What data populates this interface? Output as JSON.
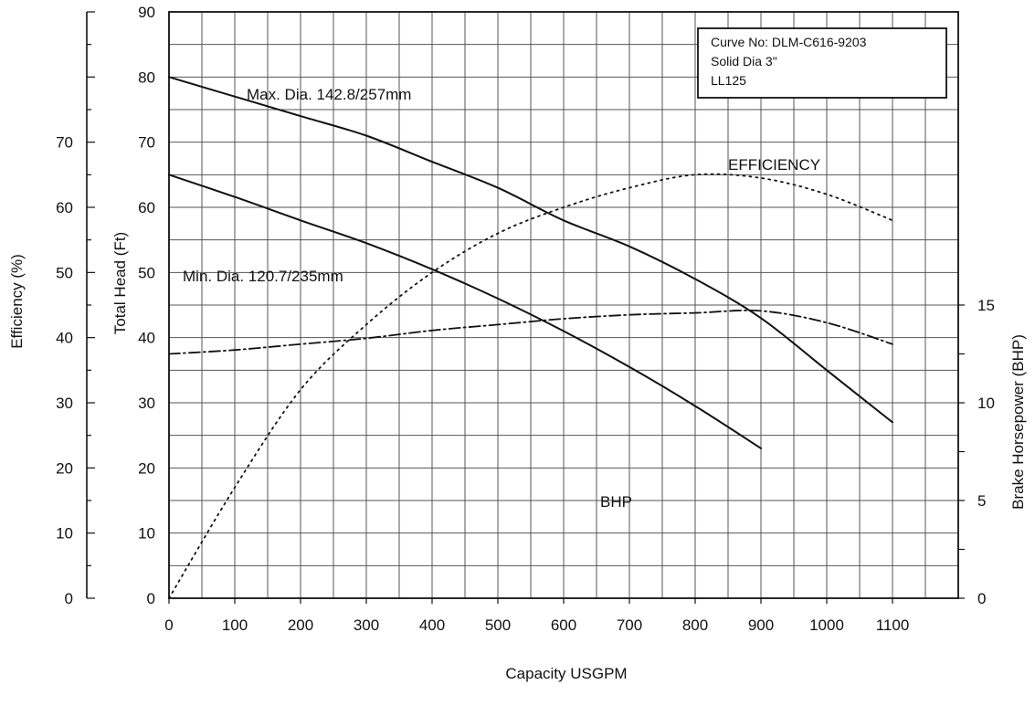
{
  "chart_data": {
    "type": "line",
    "xlabel": "Capacity USGPM",
    "ylabel_head": "Total Head (Ft)",
    "ylabel_efficiency": "Efficiency (%)",
    "ylabel_bhp": "Brake Horsepower (BHP)",
    "x_ticks": [
      0,
      100,
      200,
      300,
      400,
      500,
      600,
      700,
      800,
      900,
      1000,
      1100
    ],
    "head_ticks": [
      0,
      10,
      20,
      30,
      40,
      50,
      60,
      70,
      80,
      90
    ],
    "efficiency_ticks": [
      0,
      10,
      20,
      30,
      40,
      50,
      60,
      70
    ],
    "bhp_ticks": [
      0,
      5,
      10,
      15
    ],
    "xlim": [
      0,
      1200
    ],
    "ylim_head": [
      0,
      90
    ],
    "ylim_efficiency": [
      0,
      90
    ],
    "ylim_bhp": [
      0,
      30
    ],
    "grid": true,
    "info_box": {
      "line1": "Curve No: DLM-C616-9203",
      "line2": "Solid Dia 3\"",
      "line3": "LL125"
    },
    "series": [
      {
        "name": "Max. Dia. 142.8/257mm",
        "axis": "head",
        "style": "solid",
        "x": [
          0,
          100,
          200,
          300,
          400,
          500,
          600,
          700,
          800,
          900,
          1000,
          1100
        ],
        "y": [
          80,
          77,
          74,
          71,
          67,
          63,
          58,
          54,
          49,
          43,
          35,
          27
        ]
      },
      {
        "name": "Min. Dia. 120.7/235mm",
        "axis": "head",
        "style": "solid",
        "x": [
          0,
          100,
          200,
          300,
          400,
          500,
          600,
          700,
          800,
          900
        ],
        "y": [
          65,
          61.6,
          58,
          54.5,
          50.5,
          46,
          41,
          35.5,
          29.5,
          23
        ]
      },
      {
        "name": "EFFICIENCY",
        "axis": "efficiency",
        "style": "dotted",
        "x": [
          0,
          100,
          200,
          300,
          400,
          500,
          600,
          700,
          800,
          900,
          1000,
          1100
        ],
        "y": [
          0,
          17,
          32,
          42,
          50,
          56,
          60,
          63,
          65,
          64.5,
          62,
          58
        ]
      },
      {
        "name": "BHP",
        "axis": "bhp",
        "style": "dashdot",
        "x": [
          0,
          100,
          200,
          300,
          400,
          500,
          600,
          700,
          800,
          900,
          1000,
          1100
        ],
        "y": [
          12.5,
          12.7,
          13.0,
          13.3,
          13.7,
          14.0,
          14.3,
          14.5,
          14.6,
          14.7,
          14.1,
          13.0
        ]
      }
    ]
  }
}
